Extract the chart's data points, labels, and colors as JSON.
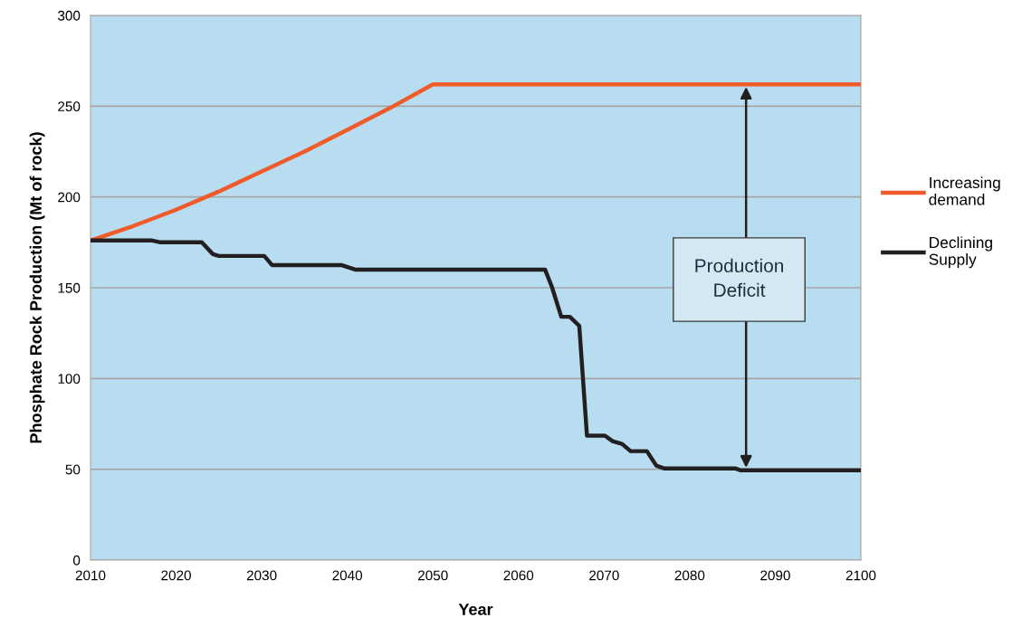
{
  "chart_data": {
    "type": "line",
    "xlabel": "Year",
    "ylabel": "Phosphate Rock Production (Mt of rock)",
    "xlim": [
      2010,
      2100
    ],
    "xticks": [
      2010,
      2020,
      2030,
      2040,
      2050,
      2060,
      2070,
      2080,
      2090,
      2100
    ],
    "ylim": [
      0,
      300
    ],
    "yticks": [
      0,
      50,
      100,
      150,
      200,
      250,
      300
    ],
    "grid": "y",
    "legend": "right",
    "marker": "none",
    "line_style": "solid",
    "series": [
      {
        "name": "Increasing\ndemand",
        "color": "#f15a29",
        "x": [
          2010,
          2015,
          2020,
          2025,
          2030,
          2035,
          2040,
          2045,
          2050,
          2100
        ],
        "values": [
          176,
          184,
          193,
          203,
          214,
          225,
          237,
          249,
          262,
          262
        ]
      },
      {
        "name": "Declining\nSupply",
        "color": "#231f20",
        "x": [
          2010,
          2017.2,
          2018.2,
          2023,
          2024.3,
          2025,
          2030.3,
          2031.2,
          2039.3,
          2040.9,
          2063.1,
          2063.9,
          2065,
          2066,
          2067.1,
          2068,
          2070.1,
          2071,
          2072.1,
          2073.1,
          2075,
          2076.1,
          2077,
          2085.3,
          2085.9,
          2100
        ],
        "values": [
          176,
          176,
          175,
          175,
          168.5,
          167.5,
          167.5,
          162.5,
          162.5,
          160,
          160,
          150.5,
          134,
          134,
          129,
          68.5,
          68.5,
          65.5,
          64,
          60,
          60,
          52,
          50.5,
          50.5,
          49.5,
          49.5
        ]
      }
    ],
    "annotations": [
      "Production\nDeficit"
    ]
  }
}
